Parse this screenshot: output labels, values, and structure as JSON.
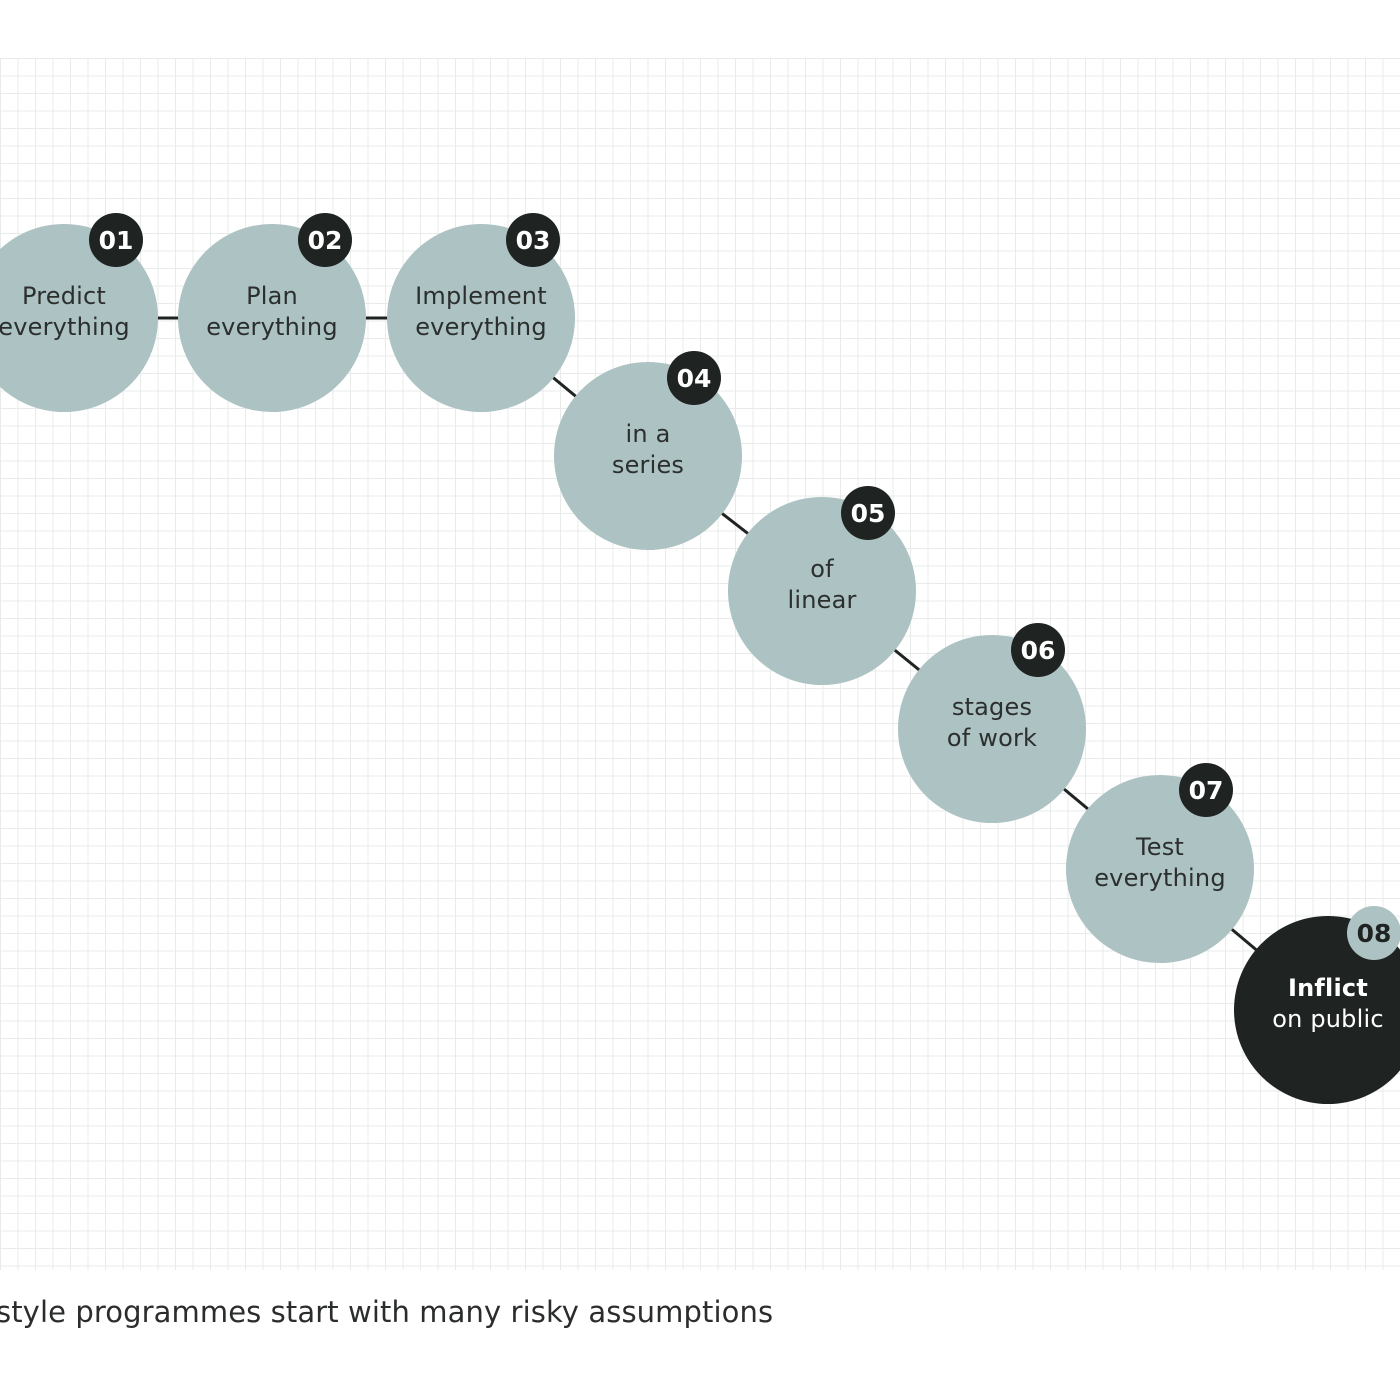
{
  "colors": {
    "node_fill": "#adc2c2",
    "node_text": "#2b2f2e",
    "final_fill": "#1f2322",
    "final_text": "#ffffff",
    "badge_fill": "#1f2322",
    "badge_text": "#ffffff",
    "final_badge_fill": "#adc2c2",
    "final_badge_text": "#1f2322",
    "connector": "#1f2322"
  },
  "steps": [
    {
      "number": "01",
      "label": [
        "Predict",
        "everything"
      ]
    },
    {
      "number": "02",
      "label": [
        "Plan",
        "everything"
      ]
    },
    {
      "number": "03",
      "label": [
        "Implement",
        "everything"
      ]
    },
    {
      "number": "04",
      "label": [
        "in a",
        "series"
      ]
    },
    {
      "number": "05",
      "label": [
        "of",
        "linear"
      ]
    },
    {
      "number": "06",
      "label": [
        "stages",
        "of work"
      ]
    },
    {
      "number": "07",
      "label": [
        "Test",
        "everything"
      ]
    },
    {
      "number": "08",
      "label": [
        "Inflict",
        "on public"
      ],
      "final": true
    }
  ],
  "caption": "style programmes start with many risky assumptions"
}
